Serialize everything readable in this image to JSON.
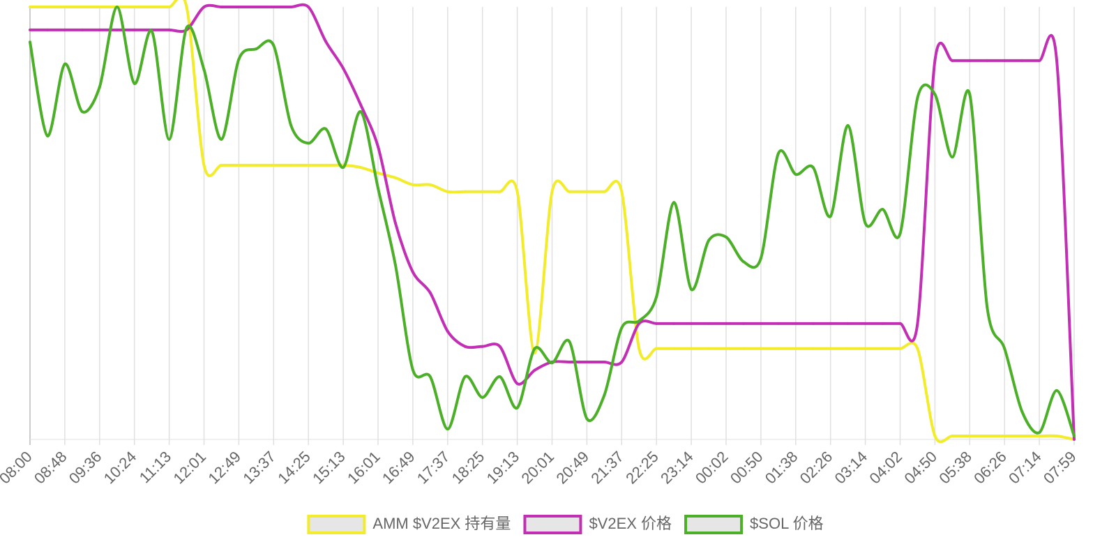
{
  "chart_data": {
    "type": "line",
    "categories": [
      "08:00",
      null,
      "08:48",
      null,
      "09:36",
      null,
      "10:24",
      null,
      "11:13",
      null,
      "12:01",
      null,
      "12:49",
      null,
      "13:37",
      null,
      "14:25",
      null,
      "15:13",
      null,
      "16:01",
      null,
      "16:49",
      null,
      "17:37",
      null,
      "18:25",
      null,
      "19:13",
      null,
      "20:01",
      null,
      "20:49",
      null,
      "21:37",
      null,
      "22:25",
      null,
      "23:14",
      null,
      "00:02",
      null,
      "00:50",
      null,
      "01:38",
      null,
      "02:26",
      null,
      "03:14",
      null,
      "04:02",
      null,
      "04:50",
      null,
      "05:38",
      null,
      "06:26",
      null,
      "07:14",
      null,
      "07:59"
    ],
    "ylim": [
      0,
      100
    ],
    "grid": true,
    "legend": "bottom",
    "series": [
      {
        "name": "AMM $V2EX 持有量",
        "color": "#f2ec2a",
        "values": [
          100,
          100,
          100,
          100,
          100,
          100,
          100,
          100,
          100,
          100,
          63.4,
          63.4,
          63.4,
          63.4,
          63.4,
          63.4,
          63.4,
          63.4,
          63.4,
          62.9,
          61.6,
          60.5,
          58.9,
          58.9,
          57.3,
          57.3,
          57.3,
          57.3,
          57.3,
          20,
          57.3,
          57.3,
          57.3,
          57.3,
          57.3,
          21,
          21,
          21,
          21,
          21,
          21,
          21,
          21,
          21,
          21,
          21,
          21,
          21,
          21,
          21,
          21,
          21,
          0.8,
          0.8,
          0.8,
          0.8,
          0.8,
          0.8,
          0.8,
          0.8,
          0
        ]
      },
      {
        "name": "$V2EX 价格",
        "color": "#c22fb4",
        "values": [
          94.7,
          94.7,
          94.7,
          94.7,
          94.7,
          94.7,
          94.7,
          94.7,
          94.7,
          94.7,
          100,
          100,
          100,
          100,
          100,
          100,
          100,
          92,
          85.8,
          77.4,
          67.7,
          50,
          38.7,
          33.9,
          25,
          21.5,
          21.5,
          21.5,
          12.9,
          16,
          17.9,
          17.9,
          17.9,
          17.9,
          17.9,
          26.8,
          26.8,
          26.8,
          26.8,
          26.8,
          26.8,
          26.8,
          26.8,
          26.8,
          26.8,
          26.8,
          26.8,
          26.8,
          26.8,
          26.8,
          26.8,
          26.8,
          87.6,
          87.6,
          87.6,
          87.6,
          87.6,
          87.6,
          87.6,
          87.6,
          0
        ]
      },
      {
        "name": "$SOL 价格",
        "color": "#4caf28",
        "values": [
          91.9,
          70.2,
          86.8,
          75.8,
          81.5,
          100,
          82.3,
          94.4,
          69.4,
          95.2,
          85.5,
          69.4,
          87.9,
          90.3,
          91.1,
          72.6,
          68.5,
          71.8,
          62.9,
          75.8,
          58.1,
          40.3,
          16.1,
          14.5,
          2.4,
          14.5,
          9.7,
          14.5,
          7.3,
          21,
          17.7,
          22.6,
          4.8,
          10.2,
          25.8,
          27.4,
          33,
          54.8,
          34.7,
          46,
          46.8,
          41.1,
          41.9,
          66.1,
          61.3,
          62.9,
          51.6,
          72.6,
          50,
          53.2,
          47.6,
          79,
          79.8,
          65.3,
          79.8,
          30.6,
          21,
          6.5,
          1.6,
          11.3,
          0.8
        ]
      }
    ]
  }
}
